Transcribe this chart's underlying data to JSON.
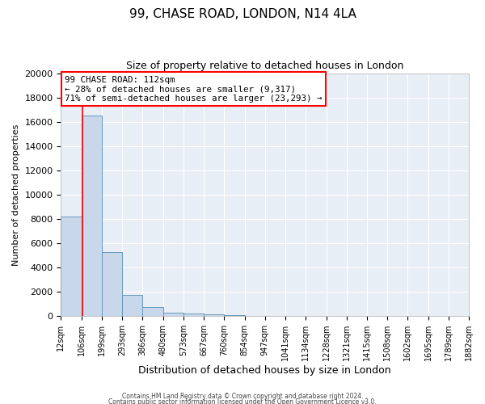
{
  "title": "99, CHASE ROAD, LONDON, N14 4LA",
  "subtitle": "Size of property relative to detached houses in London",
  "xlabel": "Distribution of detached houses by size in London",
  "ylabel": "Number of detached properties",
  "bar_color": "#c8d8ea",
  "bar_edge_color": "#6699bb",
  "background_color": "#e8eef5",
  "grid_color": "#ffffff",
  "fig_bg_color": "#ffffff",
  "red_line_x": 112,
  "bin_edges": [
    12,
    106,
    199,
    293,
    386,
    480,
    573,
    667,
    760,
    854,
    947,
    1041,
    1134,
    1228,
    1321,
    1415,
    1508,
    1602,
    1695,
    1789,
    1882
  ],
  "bin_labels": [
    "12sqm",
    "106sqm",
    "199sqm",
    "293sqm",
    "386sqm",
    "480sqm",
    "573sqm",
    "667sqm",
    "760sqm",
    "854sqm",
    "947sqm",
    "1041sqm",
    "1134sqm",
    "1228sqm",
    "1321sqm",
    "1415sqm",
    "1508sqm",
    "1602sqm",
    "1695sqm",
    "1789sqm",
    "1882sqm"
  ],
  "bar_heights": [
    8200,
    16500,
    5300,
    1750,
    750,
    280,
    200,
    130,
    100,
    0,
    0,
    0,
    0,
    0,
    0,
    0,
    0,
    0,
    0,
    0
  ],
  "ylim": [
    0,
    20000
  ],
  "yticks": [
    0,
    2000,
    4000,
    6000,
    8000,
    10000,
    12000,
    14000,
    16000,
    18000,
    20000
  ],
  "annotation_line1": "99 CHASE ROAD: 112sqm",
  "annotation_line2": "← 28% of detached houses are smaller (9,317)",
  "annotation_line3": "71% of semi-detached houses are larger (23,293) →",
  "footer_line1": "Contains HM Land Registry data © Crown copyright and database right 2024.",
  "footer_line2": "Contains public sector information licensed under the Open Government Licence v3.0."
}
